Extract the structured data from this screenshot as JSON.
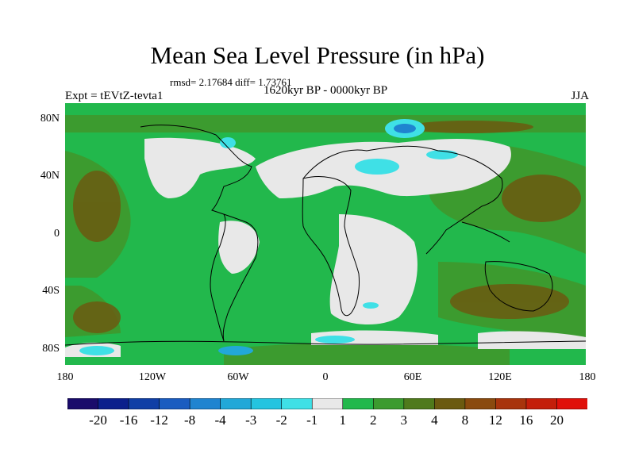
{
  "title": "Mean Sea Level Pressure (in hPa)",
  "stats": "rmsd= 2.17684 diff= 1.73761",
  "period": "1620kyr BP - 0000kyr BP",
  "experiment": "Expt = tEVtZ-tevta1",
  "season": "JJA",
  "lat_labels": [
    "80N",
    "40N",
    "0",
    "40S",
    "80S"
  ],
  "lon_labels": [
    "180",
    "120W",
    "60W",
    "0",
    "60E",
    "120E",
    "180"
  ],
  "legend": {
    "labels": [
      "-20",
      "-16",
      "-12",
      "-8",
      "-4",
      "-3",
      "-2",
      "-1",
      "1",
      "2",
      "3",
      "4",
      "8",
      "12",
      "16",
      "20"
    ],
    "colors": [
      "#1a0b6b",
      "#0b1f8c",
      "#103fa6",
      "#1a5cc0",
      "#1f84d0",
      "#22a8d8",
      "#24c4e0",
      "#3fe0e6",
      "#e8e8e8",
      "#22b84c",
      "#3c9b2f",
      "#4f7a1c",
      "#6b5a10",
      "#8a4a0e",
      "#a8340c",
      "#c41e0a",
      "#e0100a"
    ]
  }
}
